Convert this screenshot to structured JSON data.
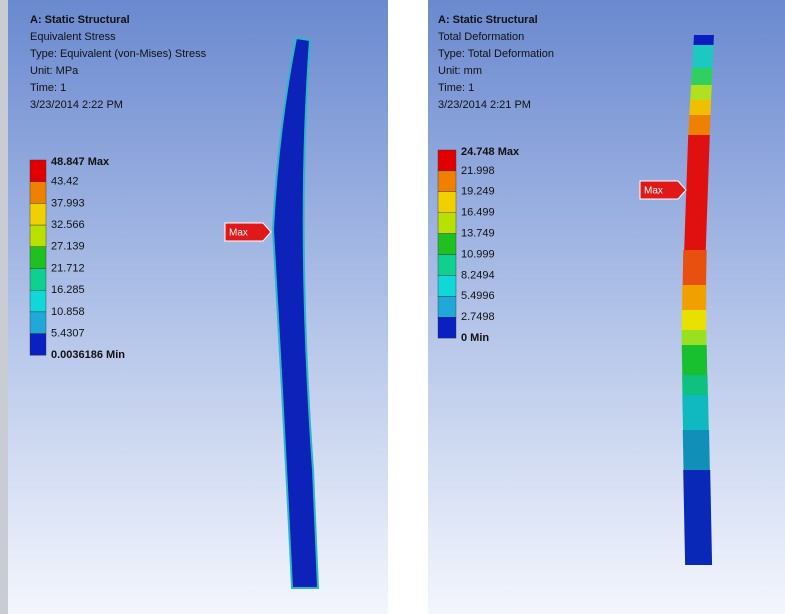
{
  "panels": [
    {
      "header": [
        "A: Static Structural",
        "Equivalent Stress",
        "Type: Equivalent (von-Mises) Stress",
        "Unit: MPa",
        "Time: 1",
        "3/23/2014 2:22 PM"
      ],
      "legend": [
        "48.847 Max",
        "43.42",
        "37.993",
        "32.566",
        "27.139",
        "21.712",
        "16.285",
        "10.858",
        "5.4307",
        "0.0036186 Min"
      ],
      "probe": "Max"
    },
    {
      "header": [
        "A: Static Structural",
        "Total Deformation",
        "Type: Total Deformation",
        "Unit: mm",
        "Time: 1",
        "3/23/2014 2:21 PM"
      ],
      "legend": [
        "24.748 Max",
        "21.998",
        "19.249",
        "16.499",
        "13.749",
        "10.999",
        "8.2494",
        "5.4996",
        "2.7498",
        "0 Min"
      ],
      "probe": "Max"
    }
  ]
}
